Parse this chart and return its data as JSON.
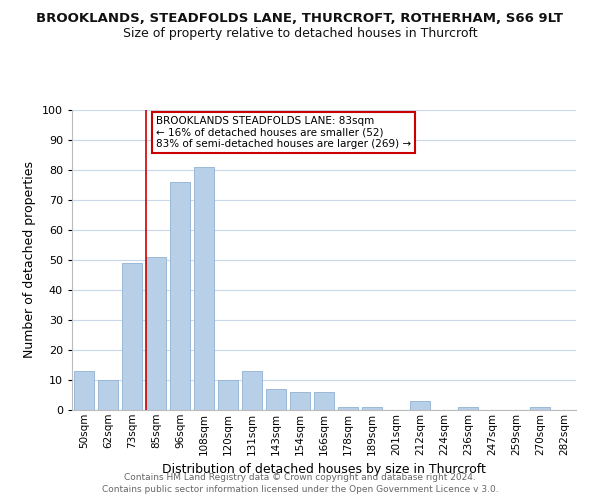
{
  "title": "BROOKLANDS, STEADFOLDS LANE, THURCROFT, ROTHERHAM, S66 9LT",
  "subtitle": "Size of property relative to detached houses in Thurcroft",
  "xlabel": "Distribution of detached houses by size in Thurcroft",
  "ylabel": "Number of detached properties",
  "bar_labels": [
    "50sqm",
    "62sqm",
    "73sqm",
    "85sqm",
    "96sqm",
    "108sqm",
    "120sqm",
    "131sqm",
    "143sqm",
    "154sqm",
    "166sqm",
    "178sqm",
    "189sqm",
    "201sqm",
    "212sqm",
    "224sqm",
    "236sqm",
    "247sqm",
    "259sqm",
    "270sqm",
    "282sqm"
  ],
  "bar_values": [
    13,
    10,
    49,
    51,
    76,
    81,
    10,
    13,
    7,
    6,
    6,
    1,
    1,
    0,
    3,
    0,
    1,
    0,
    0,
    1,
    0
  ],
  "bar_color": "#b8cfe8",
  "bar_edge_color": "#9ab8d8",
  "vline_x_index": 3,
  "vline_color": "#cc0000",
  "annotation_text": "BROOKLANDS STEADFOLDS LANE: 83sqm\n← 16% of detached houses are smaller (52)\n83% of semi-detached houses are larger (269) →",
  "annotation_box_color": "#ffffff",
  "annotation_box_edge": "#cc0000",
  "ylim": [
    0,
    100
  ],
  "yticks": [
    0,
    10,
    20,
    30,
    40,
    50,
    60,
    70,
    80,
    90,
    100
  ],
  "footer_line1": "Contains HM Land Registry data © Crown copyright and database right 2024.",
  "footer_line2": "Contains public sector information licensed under the Open Government Licence v 3.0.",
  "background_color": "#ffffff",
  "grid_color": "#c8d8e8"
}
